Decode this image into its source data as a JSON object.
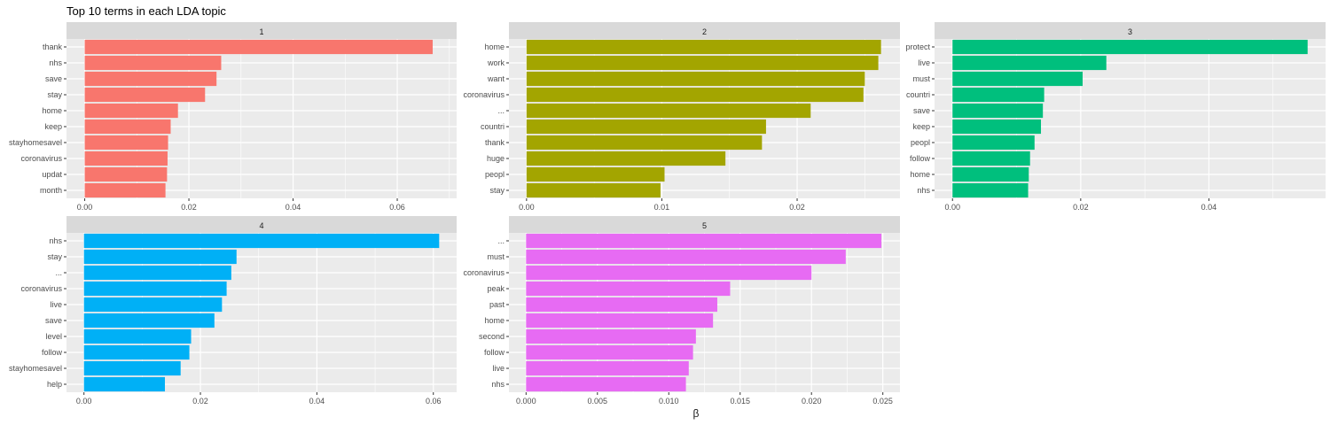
{
  "chart_data": {
    "title": "Top 10 terms in each LDA topic",
    "xlabel": "β",
    "type": "bar",
    "orientation": "horizontal",
    "grid": true,
    "panel_background": "#ebebeb",
    "strip_background": "#d9d9d9",
    "panels": [
      {
        "label": "1",
        "color": "#F8766D",
        "terms": [
          "thank",
          "nhs",
          "save",
          "stay",
          "home",
          "keep",
          "stayhomesavel",
          "coronavirus",
          "updat",
          "month"
        ],
        "values": [
          0.0668,
          0.0262,
          0.0253,
          0.0231,
          0.0179,
          0.0165,
          0.016,
          0.0159,
          0.0158,
          0.0155
        ],
        "xlim": [
          -0.0035,
          0.0714
        ],
        "ticks": [
          0.0,
          0.02,
          0.04,
          0.06
        ],
        "tick_labels": [
          "0.00",
          "0.02",
          "0.04",
          "0.06"
        ]
      },
      {
        "label": "2",
        "color": "#A3A500",
        "terms": [
          "home",
          "work",
          "want",
          "coronavirus",
          "...",
          "countri",
          "thank",
          "huge",
          "peopl",
          "stay"
        ],
        "values": [
          0.0262,
          0.026,
          0.025,
          0.0249,
          0.021,
          0.0177,
          0.0174,
          0.0147,
          0.0102,
          0.0099
        ],
        "xlim": [
          -0.0013,
          0.0276
        ],
        "ticks": [
          0.0,
          0.01,
          0.02
        ],
        "tick_labels": [
          "0.00",
          "0.01",
          "0.02"
        ]
      },
      {
        "label": "3",
        "color": "#00BF7D",
        "terms": [
          "protect",
          "live",
          "must",
          "countri",
          "save",
          "keep",
          "peopl",
          "follow",
          "home",
          "nhs"
        ],
        "values": [
          0.0554,
          0.024,
          0.0203,
          0.0143,
          0.0141,
          0.0138,
          0.0128,
          0.0121,
          0.0119,
          0.0118
        ],
        "xlim": [
          -0.0028,
          0.0582
        ],
        "ticks": [
          0.0,
          0.02,
          0.04
        ],
        "tick_labels": [
          "0.00",
          "0.02",
          "0.04"
        ]
      },
      {
        "label": "4",
        "color": "#00B0F6",
        "terms": [
          "nhs",
          "stay",
          "...",
          "coronavirus",
          "live",
          "save",
          "level",
          "follow",
          "stayhomesavel",
          "help"
        ],
        "values": [
          0.061,
          0.0262,
          0.0253,
          0.0245,
          0.0237,
          0.0224,
          0.0184,
          0.0181,
          0.0166,
          0.0139
        ],
        "xlim": [
          -0.003,
          0.064
        ],
        "ticks": [
          0.0,
          0.02,
          0.04,
          0.06
        ],
        "tick_labels": [
          "0.00",
          "0.02",
          "0.04",
          "0.06"
        ]
      },
      {
        "label": "5",
        "color": "#E76BF3",
        "terms": [
          "...",
          "must",
          "coronavirus",
          "peak",
          "past",
          "home",
          "second",
          "follow",
          "live",
          "nhs"
        ],
        "values": [
          0.0249,
          0.0224,
          0.02,
          0.0143,
          0.0134,
          0.0131,
          0.0119,
          0.0117,
          0.0114,
          0.0112
        ],
        "xlim": [
          -0.0012,
          0.0262
        ],
        "ticks": [
          0.0,
          0.005,
          0.01,
          0.015,
          0.02,
          0.025
        ],
        "tick_labels": [
          "0.000",
          "0.005",
          "0.010",
          "0.015",
          "0.020",
          "0.025"
        ]
      }
    ]
  }
}
